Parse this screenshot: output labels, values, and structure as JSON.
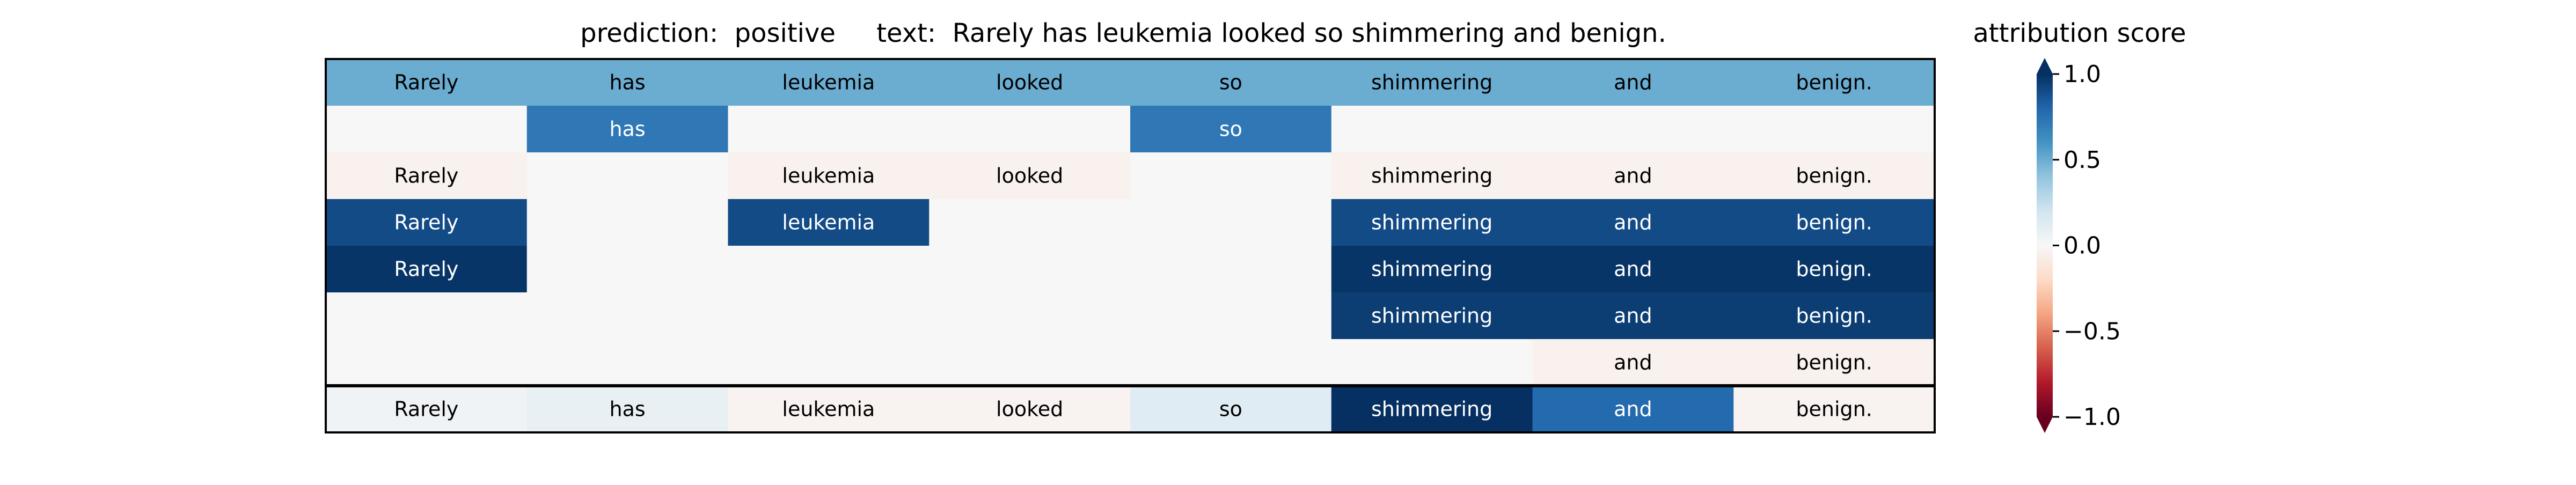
{
  "chart_data": {
    "type": "heatmap",
    "title": "prediction:  positive     text:  Rarely has leukemia looked so shimmering and benign.",
    "colorbar": {
      "label": "attribution score",
      "range": [
        -1.0,
        1.0
      ],
      "ticks": [
        1.0,
        0.5,
        0.0,
        -0.5,
        -1.0
      ],
      "tick_labels": [
        "1.0",
        "0.5",
        "0.0",
        "−0.5",
        "−1.0"
      ],
      "colormap": "RdBu",
      "extend": "both"
    },
    "columns": [
      "Rarely",
      "has",
      "leukemia",
      "looked",
      "so",
      "shimmering",
      "and",
      "benign."
    ],
    "rows": [
      {
        "cells": [
          {
            "token": "Rarely",
            "value": 0.5
          },
          {
            "token": "has",
            "value": 0.5
          },
          {
            "token": "leukemia",
            "value": 0.5
          },
          {
            "token": "looked",
            "value": 0.5
          },
          {
            "token": "so",
            "value": 0.5
          },
          {
            "token": "shimmering",
            "value": 0.5
          },
          {
            "token": "and",
            "value": 0.5
          },
          {
            "token": "benign.",
            "value": 0.5
          }
        ]
      },
      {
        "cells": [
          {
            "token": "",
            "value": 0.0
          },
          {
            "token": "has",
            "value": 0.72
          },
          {
            "token": "",
            "value": 0.0
          },
          {
            "token": "",
            "value": 0.0
          },
          {
            "token": "so",
            "value": 0.72
          },
          {
            "token": "",
            "value": 0.0
          },
          {
            "token": "",
            "value": 0.0
          },
          {
            "token": "",
            "value": 0.0
          }
        ]
      },
      {
        "cells": [
          {
            "token": "Rarely",
            "value": -0.04
          },
          {
            "token": "",
            "value": 0.0
          },
          {
            "token": "leukemia",
            "value": -0.04
          },
          {
            "token": "looked",
            "value": -0.04
          },
          {
            "token": "",
            "value": 0.0
          },
          {
            "token": "shimmering",
            "value": -0.04
          },
          {
            "token": "and",
            "value": -0.04
          },
          {
            "token": "benign.",
            "value": -0.04
          }
        ]
      },
      {
        "cells": [
          {
            "token": "Rarely",
            "value": 0.9
          },
          {
            "token": "",
            "value": 0.0
          },
          {
            "token": "leukemia",
            "value": 0.9
          },
          {
            "token": "",
            "value": 0.0
          },
          {
            "token": "",
            "value": 0.0
          },
          {
            "token": "shimmering",
            "value": 0.9
          },
          {
            "token": "and",
            "value": 0.9
          },
          {
            "token": "benign.",
            "value": 0.9
          }
        ]
      },
      {
        "cells": [
          {
            "token": "Rarely",
            "value": 0.98
          },
          {
            "token": "",
            "value": 0.0
          },
          {
            "token": "",
            "value": 0.0
          },
          {
            "token": "",
            "value": 0.0
          },
          {
            "token": "",
            "value": 0.0
          },
          {
            "token": "shimmering",
            "value": 0.98
          },
          {
            "token": "and",
            "value": 0.98
          },
          {
            "token": "benign.",
            "value": 0.98
          }
        ]
      },
      {
        "cells": [
          {
            "token": "",
            "value": 0.0
          },
          {
            "token": "",
            "value": 0.0
          },
          {
            "token": "",
            "value": 0.0
          },
          {
            "token": "",
            "value": 0.0
          },
          {
            "token": "",
            "value": 0.0
          },
          {
            "token": "shimmering",
            "value": 0.95
          },
          {
            "token": "and",
            "value": 0.95
          },
          {
            "token": "benign.",
            "value": 0.95
          }
        ]
      },
      {
        "cells": [
          {
            "token": "",
            "value": 0.0
          },
          {
            "token": "",
            "value": 0.0
          },
          {
            "token": "",
            "value": 0.0
          },
          {
            "token": "",
            "value": 0.0
          },
          {
            "token": "",
            "value": 0.0
          },
          {
            "token": "",
            "value": 0.0
          },
          {
            "token": "and",
            "value": -0.04
          },
          {
            "token": "benign.",
            "value": -0.04
          }
        ]
      }
    ],
    "summary_row": {
      "cells": [
        {
          "token": "Rarely",
          "value": 0.04
        },
        {
          "token": "has",
          "value": 0.08
        },
        {
          "token": "leukemia",
          "value": -0.03
        },
        {
          "token": "looked",
          "value": -0.03
        },
        {
          "token": "so",
          "value": 0.12
        },
        {
          "token": "shimmering",
          "value": 1.0
        },
        {
          "token": "and",
          "value": 0.78
        },
        {
          "token": "benign.",
          "value": -0.03
        }
      ]
    }
  }
}
